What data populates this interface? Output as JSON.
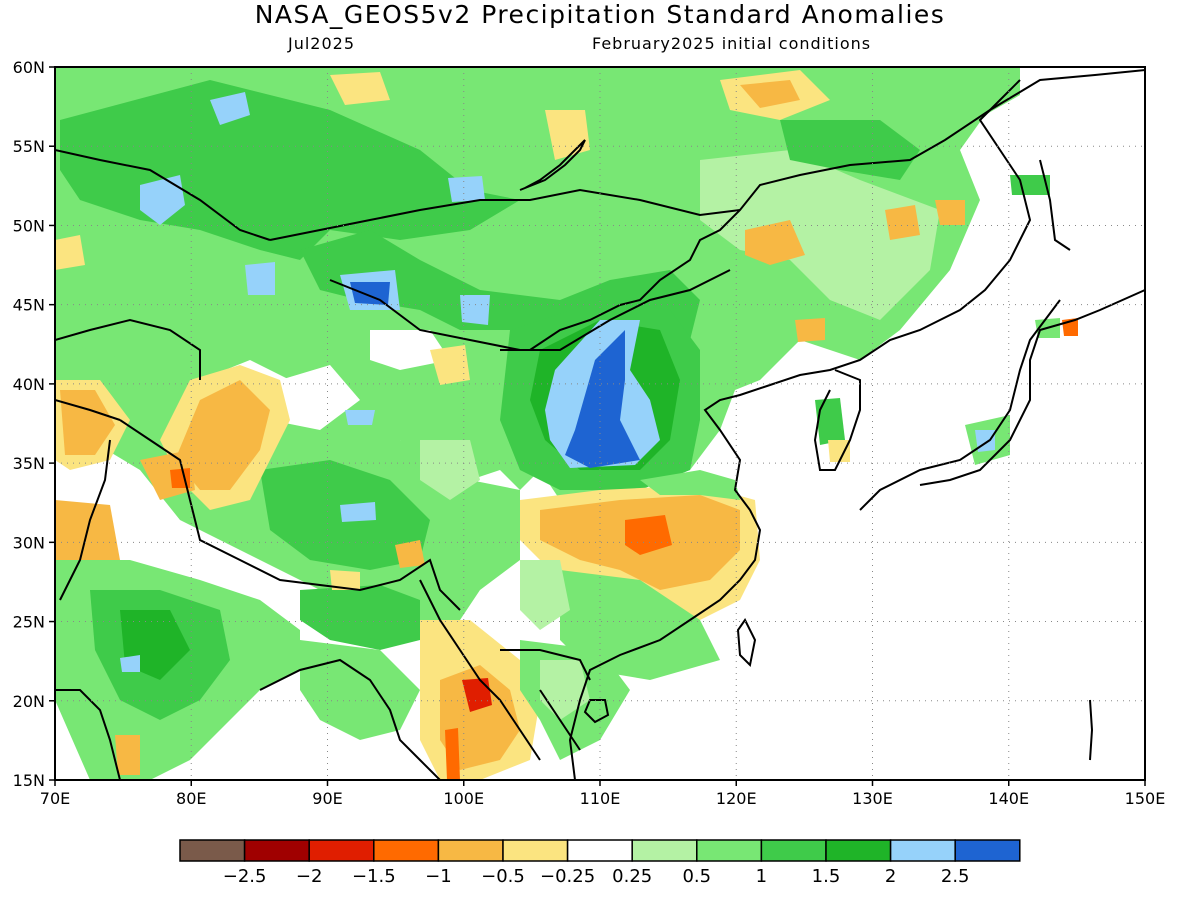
{
  "title": "NASA_GEOS5v2 Precipitation Standard Anomalies",
  "subtitle_left": "Jul2025",
  "subtitle_right": "February2025 initial conditions",
  "map": {
    "lon_range": [
      70,
      150
    ],
    "lat_range": [
      15,
      60
    ],
    "lon_ticks": [
      {
        "value": 70,
        "label": "70E"
      },
      {
        "value": 80,
        "label": "80E"
      },
      {
        "value": 90,
        "label": "90E"
      },
      {
        "value": 100,
        "label": "100E"
      },
      {
        "value": 110,
        "label": "110E"
      },
      {
        "value": 120,
        "label": "120E"
      },
      {
        "value": 130,
        "label": "130E"
      },
      {
        "value": 140,
        "label": "140E"
      },
      {
        "value": 150,
        "label": "150E"
      }
    ],
    "lat_ticks": [
      {
        "value": 15,
        "label": "15N"
      },
      {
        "value": 20,
        "label": "20N"
      },
      {
        "value": 25,
        "label": "25N"
      },
      {
        "value": 30,
        "label": "30N"
      },
      {
        "value": 35,
        "label": "35N"
      },
      {
        "value": 40,
        "label": "40N"
      },
      {
        "value": 45,
        "label": "45N"
      },
      {
        "value": 50,
        "label": "50N"
      },
      {
        "value": 55,
        "label": "55N"
      },
      {
        "value": 60,
        "label": "60N"
      }
    ],
    "grid": "dotted",
    "anomaly_regions": [
      {
        "name": "northern-interior-wet",
        "level": 1.0,
        "lon": [
          70,
          128
        ],
        "lat": [
          42,
          60
        ]
      },
      {
        "name": "north-china-wet-core",
        "level": 2.5,
        "lon": [
          107,
          112
        ],
        "lat": [
          35,
          43
        ]
      },
      {
        "name": "south-china-dry",
        "level": -1.5,
        "lon": [
          107,
          120
        ],
        "lat": [
          28,
          33
        ]
      },
      {
        "name": "myanmar-dry",
        "level": -2.0,
        "lon": [
          97,
          102
        ],
        "lat": [
          15,
          22
        ]
      },
      {
        "name": "tibet-wet",
        "level": 1.5,
        "lon": [
          85,
          100
        ],
        "lat": [
          28,
          36
        ]
      },
      {
        "name": "india-wet",
        "level": 1.0,
        "lon": [
          72,
          85
        ],
        "lat": [
          17,
          28
        ]
      }
    ]
  },
  "colorbar": {
    "colors": [
      "#7a5a4a",
      "#a00000",
      "#e01e00",
      "#ff6a00",
      "#f7b844",
      "#fbe480",
      "#ffffff",
      "#b4f2a4",
      "#78e774",
      "#3fcb4a",
      "#1fb428",
      "#96d2fa",
      "#1e64d2"
    ],
    "labels": [
      "-2.5",
      "-2",
      "-1.5",
      "-1",
      "-0.5",
      "-0.25",
      "0.25",
      "0.5",
      "1",
      "1.5",
      "2",
      "2.5"
    ]
  }
}
